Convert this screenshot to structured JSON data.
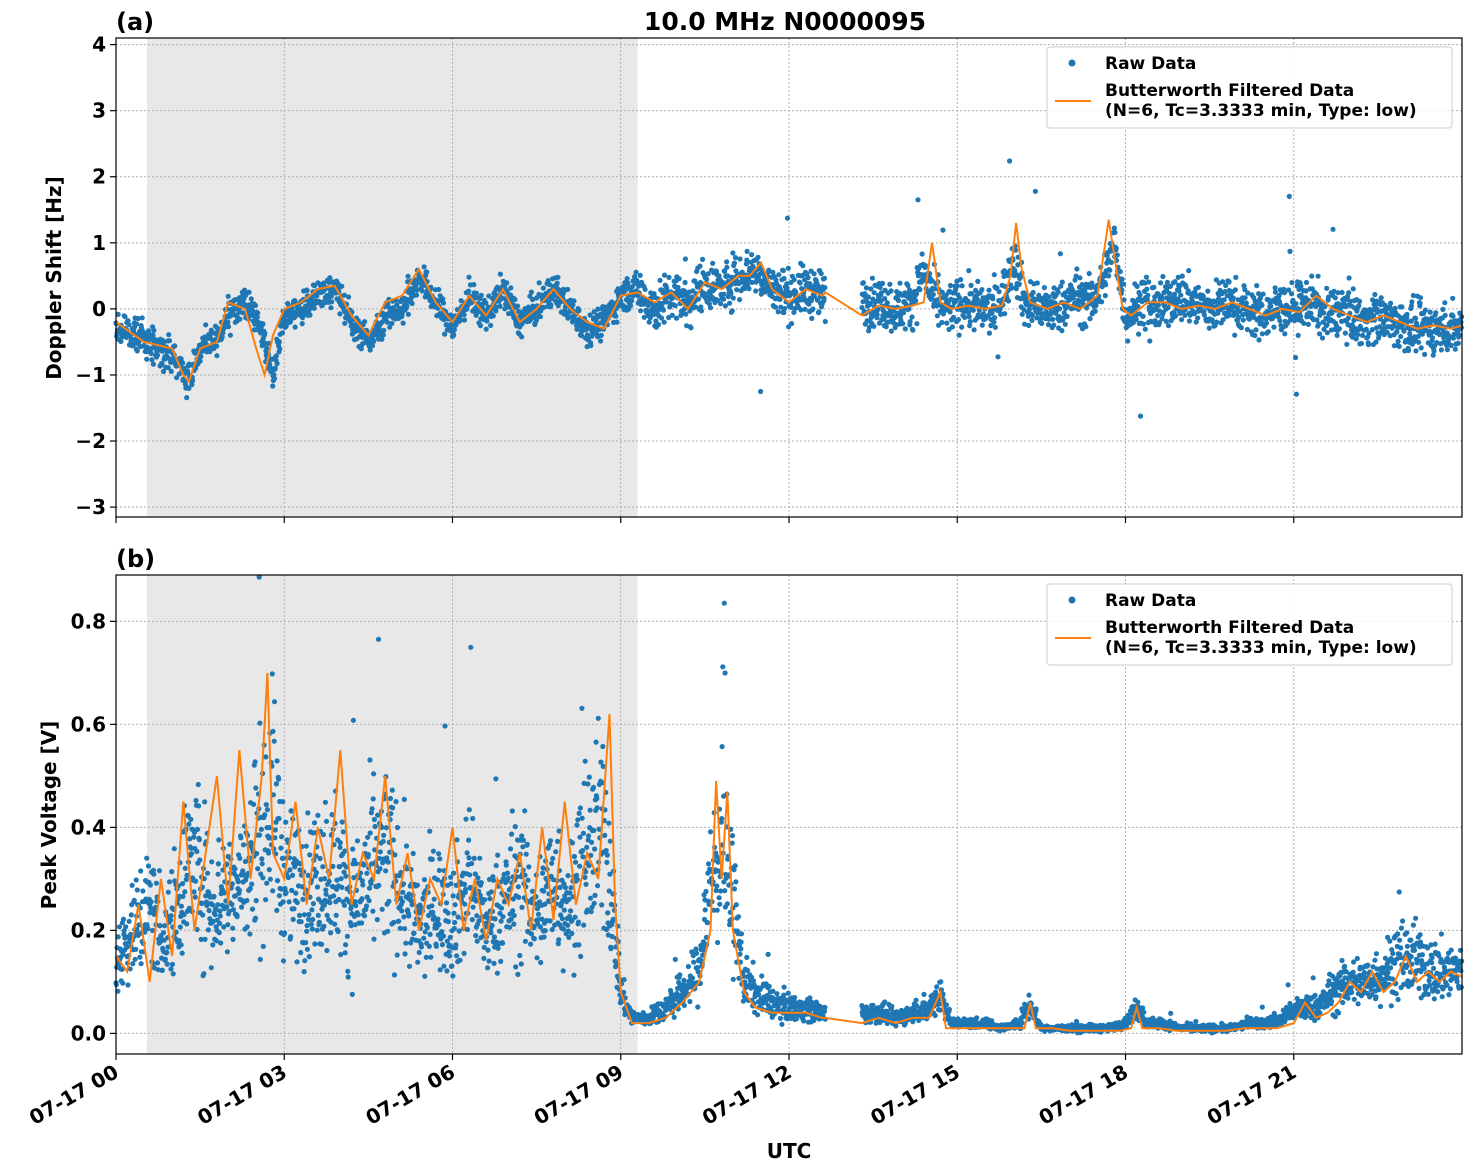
{
  "title": "10.0 MHz N0000095",
  "xlabel": "UTC",
  "x_ticks": [
    "07-17 00",
    "07-17 03",
    "07-17 06",
    "07-17 09",
    "07-17 12",
    "07-17 15",
    "07-17 18",
    "07-17 21"
  ],
  "colors": {
    "raw": "#1f77b4",
    "filtered": "#ff7f0e",
    "night_shade": "#e8e8e8"
  },
  "chart_data": [
    {
      "type": "scatter",
      "panel_label": "(a)",
      "ylabel": "Doppler Shift [Hz]",
      "xlim_hours": [
        0,
        24
      ],
      "ylim": [
        -3.15,
        4.1
      ],
      "y_ticks": [
        -3,
        -2,
        -1,
        0,
        1,
        2,
        3,
        4
      ],
      "y_tick_labels": [
        "−3",
        "−2",
        "−1",
        "0",
        "1",
        "2",
        "3",
        "4"
      ],
      "shaded_region_hours": [
        0.55,
        9.3
      ],
      "data_gap_hours": [
        12.65,
        13.3
      ],
      "grid": true,
      "legend_placement": "top-right",
      "series": [
        {
          "name": "Raw Data",
          "style": "points",
          "spread": 0.45,
          "x": [
            0,
            0.5,
            1.0,
            1.3,
            1.5,
            1.8,
            2.0,
            2.3,
            2.6,
            2.8,
            3.0,
            3.3,
            3.6,
            3.9,
            4.2,
            4.5,
            4.8,
            5.1,
            5.4,
            5.7,
            6.0,
            6.3,
            6.6,
            6.9,
            7.2,
            7.5,
            7.8,
            8.1,
            8.4,
            8.7,
            9.0,
            9.3,
            9.6,
            9.9,
            10.2,
            10.5,
            10.8,
            11.1,
            11.4,
            11.7,
            12.0,
            12.3,
            12.6,
            13.3,
            13.6,
            13.9,
            14.2,
            14.4,
            14.6,
            14.8,
            15.1,
            15.4,
            15.7,
            15.9,
            16.0,
            16.2,
            16.5,
            16.8,
            17.1,
            17.4,
            17.6,
            17.8,
            18.0,
            18.3,
            18.6,
            18.9,
            19.2,
            19.5,
            19.8,
            20.1,
            20.4,
            20.7,
            21.0,
            21.3,
            21.6,
            21.9,
            22.2,
            22.5,
            22.8,
            23.1,
            23.4,
            23.7,
            24.0
          ],
          "y": [
            -0.3,
            -0.45,
            -0.7,
            -1.1,
            -0.6,
            -0.5,
            -0.1,
            0.1,
            -0.3,
            -1.0,
            -0.1,
            0.0,
            0.2,
            0.3,
            -0.2,
            -0.5,
            -0.1,
            0.0,
            0.5,
            0.1,
            -0.3,
            0.2,
            -0.1,
            0.3,
            -0.2,
            0.0,
            0.3,
            0.0,
            -0.3,
            -0.2,
            0.2,
            0.3,
            0.0,
            0.2,
            0.1,
            0.4,
            0.3,
            0.5,
            0.6,
            0.3,
            0.2,
            0.3,
            0.2,
            0.1,
            0.1,
            0.0,
            0.1,
            0.6,
            0.1,
            0.0,
            0.1,
            0.0,
            0.0,
            0.4,
            0.8,
            0.1,
            0.0,
            0.0,
            0.2,
            0.1,
            0.4,
            1.0,
            -0.1,
            0.1,
            0.0,
            0.2,
            0.1,
            0.0,
            0.1,
            0.0,
            -0.1,
            0.0,
            0.0,
            0.1,
            -0.1,
            0.0,
            -0.2,
            -0.1,
            -0.2,
            -0.3,
            -0.3,
            -0.3,
            -0.3
          ]
        },
        {
          "name": "Butterworth Filtered Data\n(N=6, Tc=3.3333 min, Type: low)",
          "legend_lines": [
            "Butterworth Filtered Data",
            "(N=6, Tc=3.3333 min, Type: low)"
          ],
          "style": "line",
          "x": [
            0,
            0.5,
            1.0,
            1.2,
            1.3,
            1.5,
            1.8,
            2.0,
            2.3,
            2.5,
            2.65,
            2.8,
            3.0,
            3.3,
            3.6,
            3.9,
            4.2,
            4.5,
            4.8,
            5.1,
            5.4,
            5.7,
            6.0,
            6.3,
            6.6,
            6.9,
            7.2,
            7.5,
            7.8,
            8.1,
            8.4,
            8.7,
            9.0,
            9.3,
            9.6,
            9.9,
            10.2,
            10.5,
            10.8,
            11.1,
            11.3,
            11.5,
            11.7,
            12.0,
            12.3,
            12.6,
            12.65,
            13.3,
            13.6,
            13.9,
            14.2,
            14.4,
            14.55,
            14.7,
            14.9,
            15.2,
            15.5,
            15.8,
            15.95,
            16.05,
            16.15,
            16.3,
            16.6,
            16.9,
            17.2,
            17.5,
            17.7,
            17.8,
            17.95,
            18.1,
            18.4,
            18.7,
            19.0,
            19.3,
            19.6,
            19.9,
            20.2,
            20.5,
            20.8,
            21.1,
            21.4,
            21.7,
            22.0,
            22.3,
            22.6,
            22.9,
            23.2,
            23.5,
            23.8,
            24.0
          ],
          "y": [
            -0.2,
            -0.5,
            -0.6,
            -1.0,
            -1.1,
            -0.6,
            -0.5,
            0.1,
            0.0,
            -0.6,
            -1.0,
            -0.4,
            0.0,
            0.1,
            0.3,
            0.35,
            -0.1,
            -0.4,
            0.1,
            0.2,
            0.6,
            0.1,
            -0.2,
            0.2,
            -0.1,
            0.3,
            -0.2,
            0.0,
            0.3,
            0.0,
            -0.2,
            -0.3,
            0.2,
            0.25,
            0.1,
            0.25,
            0.0,
            0.4,
            0.3,
            0.5,
            0.5,
            0.7,
            0.3,
            0.1,
            0.3,
            0.2,
            0.25,
            -0.1,
            0.05,
            0.0,
            0.05,
            0.1,
            1.0,
            0.1,
            0.0,
            0.05,
            0.0,
            0.05,
            0.5,
            1.3,
            0.6,
            0.1,
            0.0,
            0.1,
            0.0,
            0.2,
            1.35,
            0.8,
            0.0,
            -0.1,
            0.1,
            0.1,
            0.0,
            0.05,
            0.0,
            0.1,
            0.0,
            -0.1,
            0.0,
            -0.05,
            0.2,
            0.0,
            -0.1,
            -0.2,
            -0.1,
            -0.2,
            -0.3,
            -0.25,
            -0.3,
            -0.25
          ]
        }
      ]
    },
    {
      "type": "scatter",
      "panel_label": "(b)",
      "ylabel": "Peak Voltage [V]",
      "xlim_hours": [
        0,
        24
      ],
      "ylim": [
        -0.04,
        0.89
      ],
      "y_ticks": [
        0.0,
        0.2,
        0.4,
        0.6,
        0.8
      ],
      "y_tick_labels": [
        "0.0",
        "0.2",
        "0.4",
        "0.6",
        "0.8"
      ],
      "shaded_region_hours": [
        0.55,
        9.3
      ],
      "data_gap_hours": [
        12.65,
        13.3
      ],
      "grid": true,
      "legend_placement": "top-right",
      "series": [
        {
          "name": "Raw Data",
          "style": "points",
          "x": [
            0,
            0.3,
            0.6,
            0.9,
            1.2,
            1.4,
            1.7,
            2.0,
            2.3,
            2.6,
            2.8,
            3.0,
            3.3,
            3.6,
            3.9,
            4.2,
            4.5,
            4.8,
            5.1,
            5.4,
            5.7,
            6.0,
            6.3,
            6.6,
            6.9,
            7.2,
            7.5,
            7.8,
            8.1,
            8.4,
            8.7,
            8.9,
            9.0,
            9.2,
            9.5,
            9.8,
            10.1,
            10.4,
            10.6,
            10.8,
            11.0,
            11.2,
            11.4,
            11.7,
            12.0,
            12.3,
            12.6,
            13.3,
            13.6,
            13.9,
            14.2,
            14.5,
            14.7,
            14.9,
            15.2,
            15.5,
            15.8,
            16.1,
            16.3,
            16.5,
            16.8,
            17.1,
            17.4,
            17.7,
            18.0,
            18.2,
            18.4,
            18.7,
            19.0,
            19.3,
            19.6,
            19.9,
            20.2,
            20.5,
            20.8,
            21.1,
            21.4,
            21.7,
            22.0,
            22.3,
            22.6,
            22.9,
            23.2,
            23.5,
            23.8,
            24.0
          ],
          "y": [
            0.15,
            0.2,
            0.25,
            0.18,
            0.3,
            0.35,
            0.25,
            0.28,
            0.3,
            0.4,
            0.45,
            0.3,
            0.28,
            0.3,
            0.32,
            0.25,
            0.3,
            0.35,
            0.28,
            0.2,
            0.25,
            0.22,
            0.3,
            0.2,
            0.25,
            0.3,
            0.22,
            0.3,
            0.25,
            0.35,
            0.4,
            0.2,
            0.08,
            0.03,
            0.03,
            0.05,
            0.08,
            0.12,
            0.3,
            0.35,
            0.25,
            0.1,
            0.08,
            0.06,
            0.05,
            0.05,
            0.04,
            0.04,
            0.04,
            0.03,
            0.04,
            0.05,
            0.08,
            0.02,
            0.02,
            0.02,
            0.01,
            0.02,
            0.06,
            0.01,
            0.01,
            0.01,
            0.01,
            0.01,
            0.02,
            0.05,
            0.02,
            0.02,
            0.01,
            0.01,
            0.01,
            0.01,
            0.02,
            0.02,
            0.03,
            0.05,
            0.05,
            0.08,
            0.1,
            0.1,
            0.12,
            0.14,
            0.14,
            0.12,
            0.12,
            0.12
          ]
        },
        {
          "name": "Butterworth Filtered Data\n(N=6, Tc=3.3333 min, Type: low)",
          "legend_lines": [
            "Butterworth Filtered Data",
            "(N=6, Tc=3.3333 min, Type: low)"
          ],
          "style": "line",
          "x": [
            0,
            0.2,
            0.4,
            0.6,
            0.8,
            1.0,
            1.2,
            1.4,
            1.6,
            1.8,
            2.0,
            2.2,
            2.4,
            2.6,
            2.7,
            2.8,
            3.0,
            3.2,
            3.4,
            3.6,
            3.8,
            4.0,
            4.2,
            4.4,
            4.6,
            4.8,
            5.0,
            5.2,
            5.4,
            5.6,
            5.8,
            6.0,
            6.2,
            6.4,
            6.6,
            6.8,
            7.0,
            7.2,
            7.4,
            7.6,
            7.8,
            8.0,
            8.2,
            8.4,
            8.6,
            8.8,
            8.9,
            9.0,
            9.2,
            9.5,
            9.8,
            10.1,
            10.4,
            10.6,
            10.7,
            10.8,
            10.9,
            11.0,
            11.2,
            11.4,
            11.7,
            12.0,
            12.3,
            12.6,
            12.65,
            13.3,
            13.6,
            13.9,
            14.2,
            14.5,
            14.7,
            14.8,
            15.0,
            15.3,
            15.6,
            15.9,
            16.2,
            16.3,
            16.4,
            16.7,
            17.0,
            17.3,
            17.6,
            17.9,
            18.1,
            18.2,
            18.3,
            18.6,
            18.9,
            19.2,
            19.5,
            19.8,
            20.1,
            20.4,
            20.7,
            21.0,
            21.2,
            21.4,
            21.6,
            21.8,
            22.0,
            22.2,
            22.4,
            22.6,
            22.8,
            23.0,
            23.2,
            23.4,
            23.6,
            23.8,
            24.0
          ],
          "y": [
            0.15,
            0.12,
            0.25,
            0.1,
            0.3,
            0.15,
            0.45,
            0.2,
            0.35,
            0.5,
            0.25,
            0.55,
            0.3,
            0.5,
            0.7,
            0.35,
            0.3,
            0.45,
            0.25,
            0.4,
            0.3,
            0.55,
            0.25,
            0.35,
            0.3,
            0.5,
            0.25,
            0.35,
            0.2,
            0.3,
            0.25,
            0.4,
            0.2,
            0.3,
            0.18,
            0.3,
            0.25,
            0.35,
            0.2,
            0.4,
            0.22,
            0.45,
            0.25,
            0.35,
            0.3,
            0.62,
            0.25,
            0.08,
            0.02,
            0.02,
            0.03,
            0.06,
            0.1,
            0.2,
            0.49,
            0.3,
            0.47,
            0.2,
            0.08,
            0.05,
            0.04,
            0.04,
            0.04,
            0.03,
            0.03,
            0.02,
            0.03,
            0.02,
            0.03,
            0.03,
            0.08,
            0.01,
            0.01,
            0.01,
            0.01,
            0.01,
            0.01,
            0.06,
            0.01,
            0.01,
            0.005,
            0.005,
            0.005,
            0.005,
            0.01,
            0.05,
            0.01,
            0.01,
            0.005,
            0.005,
            0.005,
            0.005,
            0.01,
            0.01,
            0.01,
            0.02,
            0.06,
            0.03,
            0.04,
            0.06,
            0.1,
            0.08,
            0.12,
            0.08,
            0.1,
            0.15,
            0.1,
            0.12,
            0.1,
            0.12,
            0.11
          ]
        }
      ]
    }
  ]
}
